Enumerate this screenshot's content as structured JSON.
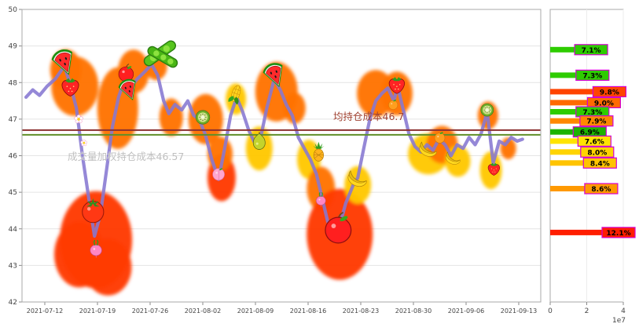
{
  "chart_data": [
    {
      "type": "line",
      "y_ticks": [
        "50",
        "49",
        "48",
        "47",
        "46",
        "45",
        "44",
        "43",
        "42"
      ],
      "ylim": [
        42,
        50
      ],
      "x_ticks": [
        "2021-07-12",
        "2021-07-19",
        "2021-07-26",
        "2021-08-02",
        "2021-08-09",
        "2021-08-16",
        "2021-08-23",
        "2021-08-30",
        "2021-09-06",
        "2021-09-13"
      ],
      "series": {
        "name": "price",
        "color": "#8678d2",
        "points": [
          [
            -2.5,
            47.6
          ],
          [
            -1.6,
            47.8
          ],
          [
            -0.7,
            47.65
          ],
          [
            0.3,
            47.9
          ],
          [
            1.4,
            48.1
          ],
          [
            2.6,
            48.45
          ],
          [
            3.4,
            47.95
          ],
          [
            4.2,
            47.3
          ],
          [
            5,
            46
          ],
          [
            5.8,
            44.9
          ],
          [
            6.6,
            43.8
          ],
          [
            7.4,
            44.4
          ],
          [
            8.2,
            45.6
          ],
          [
            9,
            46.8
          ],
          [
            9.8,
            47.6
          ],
          [
            10.8,
            48.2
          ],
          [
            11.5,
            47.9
          ],
          [
            12.3,
            48.1
          ],
          [
            13.3,
            48.3
          ],
          [
            14.2,
            48.5
          ],
          [
            15,
            48.2
          ],
          [
            15.8,
            47.5
          ],
          [
            16.5,
            47.15
          ],
          [
            17.3,
            47.4
          ],
          [
            18.2,
            47.25
          ],
          [
            19,
            47.5
          ],
          [
            19.8,
            47.1
          ],
          [
            20.5,
            47
          ],
          [
            21.3,
            46.6
          ],
          [
            22.2,
            45.9
          ],
          [
            23.1,
            45.35
          ],
          [
            23.9,
            46.2
          ],
          [
            24.7,
            47.1
          ],
          [
            25.5,
            47.6
          ],
          [
            26.3,
            47.2
          ],
          [
            27.1,
            46.7
          ],
          [
            27.9,
            46.35
          ],
          [
            28.7,
            46.5
          ],
          [
            29.5,
            47.3
          ],
          [
            30.5,
            48.1
          ],
          [
            31.3,
            47.8
          ],
          [
            32.1,
            47.4
          ],
          [
            32.9,
            47.1
          ],
          [
            33.7,
            46.5
          ],
          [
            34.5,
            46.2
          ],
          [
            35.3,
            45.9
          ],
          [
            36.1,
            45.5
          ],
          [
            36.8,
            44.9
          ],
          [
            37.6,
            44.2
          ],
          [
            38.4,
            43.9
          ],
          [
            39.2,
            44.1
          ],
          [
            40,
            44.7
          ],
          [
            41,
            45.2
          ],
          [
            41.6,
            45.4
          ],
          [
            42.4,
            46.2
          ],
          [
            43.2,
            47
          ],
          [
            44,
            47.5
          ],
          [
            44.8,
            47.7
          ],
          [
            45.6,
            47.85
          ],
          [
            46.4,
            47.5
          ],
          [
            46.9,
            47.9
          ],
          [
            47.6,
            47.3
          ],
          [
            48.4,
            46.6
          ],
          [
            49.2,
            46.25
          ],
          [
            50,
            46.1
          ],
          [
            50.8,
            46.3
          ],
          [
            51.6,
            46.15
          ],
          [
            52.4,
            46.45
          ],
          [
            53.2,
            46.3
          ],
          [
            54,
            46
          ],
          [
            54.8,
            46.3
          ],
          [
            55.6,
            46.2
          ],
          [
            56.4,
            46.5
          ],
          [
            57.2,
            46.3
          ],
          [
            58,
            46.6
          ],
          [
            58.8,
            47.2
          ],
          [
            59.6,
            45.8
          ],
          [
            60.4,
            46.4
          ],
          [
            61.2,
            46.3
          ],
          [
            62,
            46.5
          ],
          [
            62.8,
            46.4
          ],
          [
            63.5,
            46.45
          ]
        ]
      },
      "reference_lines": [
        {
          "label": "均持仓成本46.7",
          "value": 46.7,
          "color": "#8b3030",
          "label_color": "#a04232"
        },
        {
          "label": "成交量加权持仓成本46.57",
          "value": 46.57,
          "color": "#5f8f28",
          "label_color": "#bfbfbf"
        }
      ],
      "markers_format": [
        "type",
        "day",
        "price",
        "size"
      ],
      "markers": [
        [
          "watermelon",
          2.6,
          48.55,
          36
        ],
        [
          "strawberry",
          3.4,
          47.9,
          26
        ],
        [
          "flower",
          4.5,
          47,
          13
        ],
        [
          "flower",
          5.2,
          46.35,
          10
        ],
        [
          "tomato",
          6.4,
          44.5,
          34
        ],
        [
          "radish",
          6.8,
          43.45,
          22
        ],
        [
          "apple",
          10.8,
          48.25,
          24
        ],
        [
          "watermelon",
          11.2,
          47.8,
          30
        ],
        [
          "peas",
          15.3,
          48.8,
          46
        ],
        [
          "kiwi",
          21,
          47.05,
          22
        ],
        [
          "peach",
          23.1,
          45.5,
          20
        ],
        [
          "corn",
          25.4,
          47.7,
          26
        ],
        [
          "pear",
          28.5,
          46.4,
          26
        ],
        [
          "watermelon",
          30.6,
          48.2,
          34
        ],
        [
          "pineapple",
          36.4,
          46.1,
          26
        ],
        [
          "radish",
          36.7,
          44.8,
          18
        ],
        [
          "apple",
          39,
          44,
          42
        ],
        [
          "banana",
          41.6,
          45.4,
          28
        ],
        [
          "orange",
          46.3,
          47.4,
          16
        ],
        [
          "strawberry",
          46.8,
          47.95,
          24
        ],
        [
          "banana",
          51,
          46.2,
          26
        ],
        [
          "orange",
          52.5,
          46.5,
          18
        ],
        [
          "banana",
          54.3,
          45.95,
          22
        ],
        [
          "kiwi",
          58.8,
          47.25,
          20
        ],
        [
          "strawberry",
          59.7,
          45.65,
          18
        ]
      ],
      "bubbles_format": [
        "day",
        "price",
        "rx",
        "ry",
        "color"
      ],
      "bubbles": [
        [
          4,
          47.9,
          30,
          38,
          "#ff7300"
        ],
        [
          2.8,
          48.35,
          20,
          26,
          "#ff7300"
        ],
        [
          9.7,
          47.3,
          26,
          52,
          "#ff7300"
        ],
        [
          6.8,
          43.7,
          46,
          62,
          "#ff3a00"
        ],
        [
          4.6,
          43.3,
          32,
          42,
          "#ff3a00"
        ],
        [
          8.4,
          42.95,
          30,
          36,
          "#ff3a00"
        ],
        [
          11.8,
          48.3,
          20,
          28,
          "#ff7300"
        ],
        [
          14.8,
          48.45,
          14,
          18,
          "#ff7300"
        ],
        [
          16.8,
          47.05,
          15,
          24,
          "#ff7300"
        ],
        [
          21.4,
          47,
          22,
          32,
          "#ff7300"
        ],
        [
          23.5,
          45.4,
          18,
          30,
          "#ff3a00"
        ],
        [
          23.3,
          46.05,
          16,
          22,
          "#ff7300"
        ],
        [
          25.4,
          47.55,
          13,
          20,
          "#ffc800"
        ],
        [
          28.5,
          46.2,
          17,
          28,
          "#ffc800"
        ],
        [
          30.8,
          47.75,
          27,
          38,
          "#ff7300"
        ],
        [
          33.2,
          47.3,
          14,
          20,
          "#ff7300"
        ],
        [
          35.1,
          45.9,
          15,
          25,
          "#ffc800"
        ],
        [
          36.7,
          45.1,
          18,
          28,
          "#ff7300"
        ],
        [
          39.2,
          43.85,
          42,
          58,
          "#ff3a00"
        ],
        [
          41.6,
          45.2,
          17,
          24,
          "#ffc800"
        ],
        [
          44,
          47.7,
          24,
          30,
          "#ff7300"
        ],
        [
          46.8,
          47.7,
          20,
          28,
          "#ff7300"
        ],
        [
          51,
          46.05,
          26,
          26,
          "#ffc800"
        ],
        [
          52.8,
          46.3,
          20,
          24,
          "#ff7300"
        ],
        [
          54.9,
          45.85,
          16,
          20,
          "#ffc800"
        ],
        [
          58.9,
          47.1,
          13,
          18,
          "#ff7300"
        ],
        [
          59.3,
          45.6,
          14,
          24,
          "#ffc800"
        ],
        [
          61.6,
          46.2,
          10,
          14,
          "#ff7300"
        ]
      ]
    },
    {
      "type": "bar",
      "orientation": "horizontal",
      "x_ticks": [
        "0",
        "2",
        "4"
      ],
      "x_offset_label": "1e7",
      "xmax": 40000000,
      "bars": [
        {
          "label": "7.1%",
          "pct": 7.1,
          "price": 48.9,
          "volume": 26300000,
          "color": "#2ecc00"
        },
        {
          "label": "7.3%",
          "pct": 7.3,
          "price": 48.2,
          "volume": 27000000,
          "color": "#2ecc00"
        },
        {
          "label": "9.8%",
          "pct": 9.8,
          "price": 47.75,
          "volume": 36300000,
          "color": "#ff4400"
        },
        {
          "label": "9.0%",
          "pct": 9.0,
          "price": 47.45,
          "volume": 33300000,
          "color": "#ff6a00"
        },
        {
          "label": "7.3%",
          "pct": 7.3,
          "price": 47.2,
          "volume": 27000000,
          "color": "#2ecc00"
        },
        {
          "label": "7.9%",
          "pct": 7.9,
          "price": 46.95,
          "volume": 29200000,
          "color": "#ff8800"
        },
        {
          "label": "6.9%",
          "pct": 6.9,
          "price": 46.65,
          "volume": 25500000,
          "color": "#1db400"
        },
        {
          "label": "7.6%",
          "pct": 7.6,
          "price": 46.4,
          "volume": 28100000,
          "color": "#ffe400"
        },
        {
          "label": "8.0%",
          "pct": 8.0,
          "price": 46.1,
          "volume": 29600000,
          "color": "#ffd400"
        },
        {
          "label": "8.4%",
          "pct": 8.4,
          "price": 45.8,
          "volume": 31100000,
          "color": "#ffc400"
        },
        {
          "label": "8.6%",
          "pct": 8.6,
          "price": 45.1,
          "volume": 31800000,
          "color": "#ff9900"
        },
        {
          "label": "12.1%",
          "pct": 12.1,
          "price": 43.9,
          "volume": 44800000,
          "color": "#ff1e00"
        }
      ]
    }
  ]
}
